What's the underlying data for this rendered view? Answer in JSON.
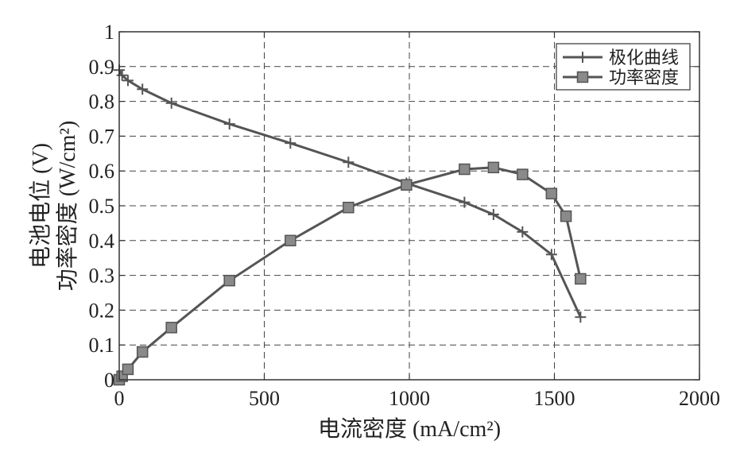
{
  "chart_data": {
    "type": "line",
    "title": "",
    "xlabel": "电流密度 (mA/cm²)",
    "ylabel_line1": "电池电位 (V)",
    "ylabel_line2": "功率密度 (W/cm²)",
    "xlim": [
      0,
      2000
    ],
    "ylim": [
      0,
      1
    ],
    "x_ticks": [
      0,
      500,
      1000,
      1500,
      2000
    ],
    "x_tick_labels": [
      "0",
      "500",
      "1000",
      "1500",
      "2000"
    ],
    "y_ticks": [
      0,
      0.1,
      0.2,
      0.3,
      0.4,
      0.5,
      0.6,
      0.7,
      0.8,
      0.9,
      1
    ],
    "y_tick_labels": [
      "0",
      "0.1",
      "0.2",
      "0.3",
      "0.4",
      "0.5",
      "0.6",
      "0.7",
      "0.8",
      "0.9",
      "1"
    ],
    "grid": true,
    "grid_style": "dashed",
    "legend_position": "top-right",
    "series": [
      {
        "name": "极化曲线",
        "marker": "plus",
        "color": "#555555",
        "x": [
          0,
          10,
          30,
          80,
          180,
          380,
          590,
          790,
          990,
          1190,
          1290,
          1390,
          1490,
          1590
        ],
        "y": [
          0.89,
          0.875,
          0.86,
          0.835,
          0.795,
          0.735,
          0.68,
          0.625,
          0.565,
          0.51,
          0.475,
          0.425,
          0.36,
          0.18
        ]
      },
      {
        "name": "功率密度",
        "marker": "square",
        "color": "#555555",
        "x": [
          0,
          10,
          30,
          80,
          180,
          380,
          590,
          790,
          990,
          1190,
          1290,
          1390,
          1490,
          1540,
          1590
        ],
        "y": [
          0.0,
          0.01,
          0.03,
          0.08,
          0.15,
          0.285,
          0.4,
          0.495,
          0.56,
          0.605,
          0.61,
          0.59,
          0.535,
          0.47,
          0.29
        ]
      }
    ]
  }
}
